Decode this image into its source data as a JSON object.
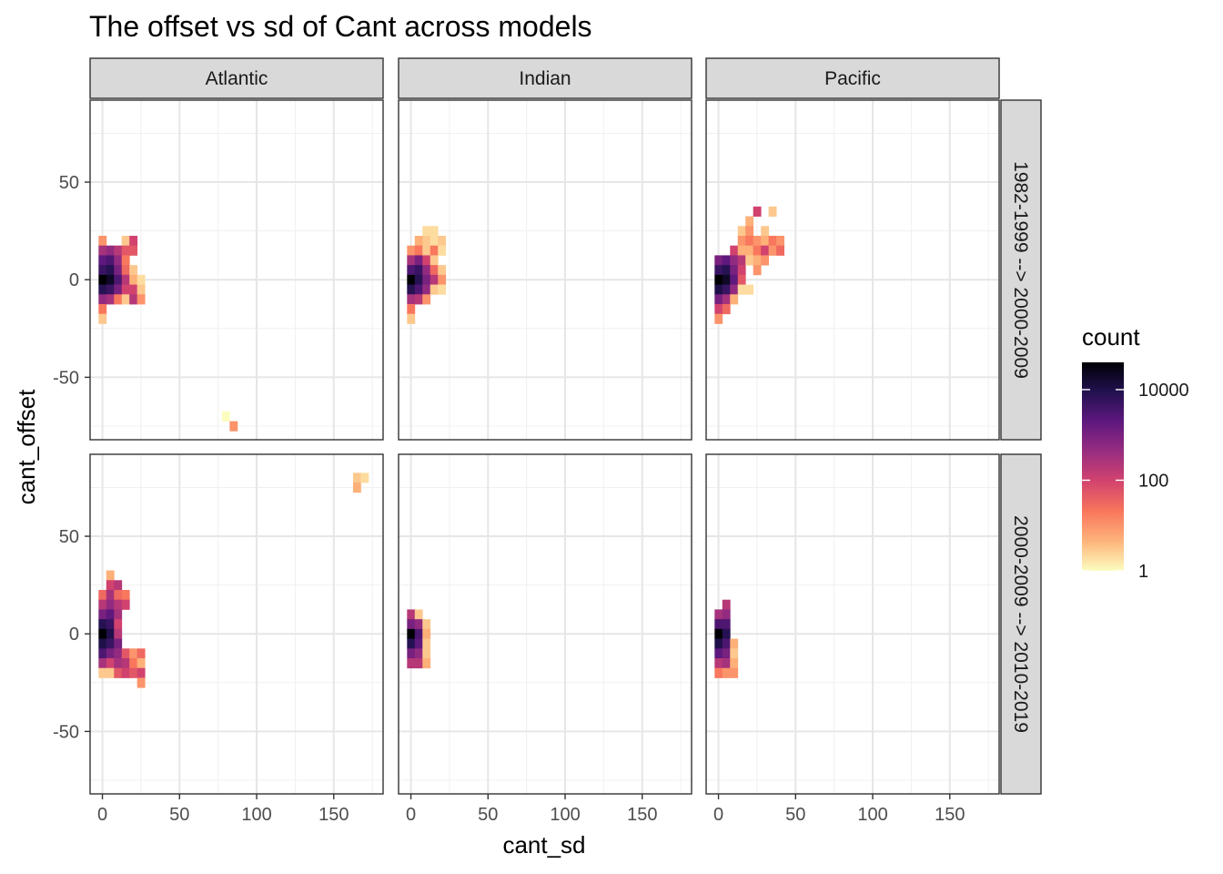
{
  "chart_data": {
    "type": "heatmap",
    "title": "The offset vs sd of Cant across models",
    "xlabel": "cant_sd",
    "ylabel": "cant_offset",
    "xlim": [
      -8,
      182
    ],
    "ylim": [
      -82,
      92
    ],
    "x_ticks": [
      0,
      50,
      100,
      150
    ],
    "y_ticks": [
      -50,
      0,
      50
    ],
    "bin_width_x": 5,
    "bin_width_y": 5,
    "columns": [
      "Atlantic",
      "Indian",
      "Pacific"
    ],
    "rows": [
      "1982-1999 --> 2000-2009",
      "2000-2009 --> 2010-2019"
    ],
    "legend": {
      "title": "count",
      "scale": "log10",
      "range": [
        1,
        40000
      ],
      "breaks": [
        1,
        100,
        10000
      ],
      "break_labels": [
        "1",
        "100",
        "10000"
      ],
      "palette": [
        "#fcfdbf",
        "#feb47b",
        "#f8765c",
        "#d3436e",
        "#982d80",
        "#5f187f",
        "#221150",
        "#000004"
      ]
    },
    "grid": true,
    "panels": [
      {
        "column": "Atlantic",
        "row": "1982-1999 --> 2000-2009",
        "bins": [
          [
            0,
            20,
            10
          ],
          [
            0,
            15,
            300
          ],
          [
            0,
            10,
            2000
          ],
          [
            0,
            5,
            5000
          ],
          [
            0,
            0,
            40000
          ],
          [
            0,
            -5,
            8000
          ],
          [
            0,
            -10,
            500
          ],
          [
            0,
            -15,
            20
          ],
          [
            0,
            -20,
            3
          ],
          [
            5,
            15,
            500
          ],
          [
            5,
            10,
            3000
          ],
          [
            5,
            5,
            8000
          ],
          [
            5,
            0,
            20000
          ],
          [
            5,
            -5,
            5000
          ],
          [
            5,
            -10,
            300
          ],
          [
            10,
            15,
            200
          ],
          [
            10,
            10,
            500
          ],
          [
            10,
            5,
            1000
          ],
          [
            10,
            0,
            3000
          ],
          [
            10,
            -5,
            1000
          ],
          [
            10,
            -10,
            20
          ],
          [
            15,
            20,
            3
          ],
          [
            15,
            15,
            50
          ],
          [
            15,
            10,
            20
          ],
          [
            15,
            5,
            30
          ],
          [
            15,
            0,
            200
          ],
          [
            15,
            -5,
            100
          ],
          [
            15,
            -10,
            3
          ],
          [
            20,
            20,
            100
          ],
          [
            20,
            15,
            50
          ],
          [
            20,
            5,
            3
          ],
          [
            20,
            0,
            5
          ],
          [
            20,
            -5,
            100
          ],
          [
            20,
            -10,
            200
          ],
          [
            25,
            0,
            2
          ],
          [
            25,
            -5,
            3
          ],
          [
            25,
            -10,
            10
          ],
          [
            80,
            -70,
            1
          ],
          [
            85,
            -75,
            10
          ]
        ]
      },
      {
        "column": "Indian",
        "row": "1982-1999 --> 2000-2009",
        "bins": [
          [
            0,
            15,
            10
          ],
          [
            0,
            10,
            300
          ],
          [
            0,
            5,
            3000
          ],
          [
            0,
            0,
            40000
          ],
          [
            0,
            -5,
            8000
          ],
          [
            0,
            -10,
            300
          ],
          [
            0,
            -15,
            20
          ],
          [
            0,
            -20,
            3
          ],
          [
            5,
            20,
            5
          ],
          [
            5,
            15,
            20
          ],
          [
            5,
            10,
            1000
          ],
          [
            5,
            5,
            5000
          ],
          [
            5,
            0,
            8000
          ],
          [
            5,
            -5,
            3000
          ],
          [
            5,
            -10,
            200
          ],
          [
            10,
            25,
            2
          ],
          [
            10,
            20,
            3
          ],
          [
            10,
            15,
            3
          ],
          [
            10,
            10,
            100
          ],
          [
            10,
            5,
            500
          ],
          [
            10,
            0,
            1000
          ],
          [
            10,
            -5,
            500
          ],
          [
            10,
            -10,
            10
          ],
          [
            15,
            25,
            2
          ],
          [
            15,
            20,
            2
          ],
          [
            15,
            15,
            20
          ],
          [
            15,
            10,
            3
          ],
          [
            15,
            5,
            30
          ],
          [
            15,
            0,
            200
          ],
          [
            15,
            -5,
            3
          ],
          [
            20,
            20,
            3
          ],
          [
            20,
            15,
            2
          ],
          [
            20,
            5,
            3
          ],
          [
            20,
            0,
            10
          ],
          [
            20,
            -5,
            2
          ]
        ]
      },
      {
        "column": "Pacific",
        "row": "1982-1999 --> 2000-2009",
        "bins": [
          [
            0,
            10,
            1000
          ],
          [
            0,
            5,
            5000
          ],
          [
            0,
            0,
            40000
          ],
          [
            0,
            -5,
            10000
          ],
          [
            0,
            -10,
            1000
          ],
          [
            0,
            -15,
            100
          ],
          [
            0,
            -20,
            10
          ],
          [
            5,
            10,
            2000
          ],
          [
            5,
            5,
            8000
          ],
          [
            5,
            0,
            20000
          ],
          [
            5,
            -5,
            5000
          ],
          [
            5,
            -10,
            300
          ],
          [
            5,
            -15,
            30
          ],
          [
            10,
            15,
            100
          ],
          [
            10,
            10,
            500
          ],
          [
            10,
            5,
            1000
          ],
          [
            10,
            0,
            2000
          ],
          [
            10,
            -5,
            500
          ],
          [
            10,
            -10,
            5
          ],
          [
            15,
            25,
            3
          ],
          [
            15,
            20,
            10
          ],
          [
            15,
            15,
            5
          ],
          [
            15,
            10,
            200
          ],
          [
            15,
            5,
            100
          ],
          [
            15,
            0,
            50
          ],
          [
            15,
            -5,
            2
          ],
          [
            20,
            30,
            5
          ],
          [
            20,
            25,
            10
          ],
          [
            20,
            20,
            20
          ],
          [
            20,
            15,
            5
          ],
          [
            20,
            10,
            3
          ],
          [
            20,
            -5,
            2
          ],
          [
            25,
            35,
            100
          ],
          [
            25,
            20,
            10
          ],
          [
            25,
            15,
            20
          ],
          [
            25,
            10,
            5
          ],
          [
            25,
            5,
            10
          ],
          [
            30,
            25,
            3
          ],
          [
            30,
            20,
            5
          ],
          [
            30,
            15,
            100
          ],
          [
            30,
            10,
            10
          ],
          [
            35,
            35,
            3
          ],
          [
            35,
            20,
            20
          ],
          [
            35,
            15,
            10
          ],
          [
            40,
            20,
            10
          ],
          [
            40,
            15,
            30
          ]
        ]
      },
      {
        "column": "Atlantic",
        "row": "2000-2009 --> 2010-2019",
        "bins": [
          [
            0,
            20,
            30
          ],
          [
            0,
            15,
            200
          ],
          [
            0,
            10,
            1000
          ],
          [
            0,
            5,
            8000
          ],
          [
            0,
            0,
            40000
          ],
          [
            0,
            -5,
            10000
          ],
          [
            0,
            -10,
            3000
          ],
          [
            0,
            -15,
            300
          ],
          [
            0,
            -20,
            3
          ],
          [
            5,
            30,
            5
          ],
          [
            5,
            25,
            100
          ],
          [
            5,
            20,
            300
          ],
          [
            5,
            15,
            500
          ],
          [
            5,
            10,
            2000
          ],
          [
            5,
            5,
            5000
          ],
          [
            5,
            0,
            10000
          ],
          [
            5,
            -5,
            5000
          ],
          [
            5,
            -10,
            1000
          ],
          [
            5,
            -15,
            100
          ],
          [
            5,
            -20,
            3
          ],
          [
            10,
            25,
            200
          ],
          [
            10,
            20,
            30
          ],
          [
            10,
            15,
            200
          ],
          [
            10,
            10,
            300
          ],
          [
            10,
            5,
            100
          ],
          [
            10,
            0,
            200
          ],
          [
            10,
            -5,
            1000
          ],
          [
            10,
            -10,
            500
          ],
          [
            10,
            -15,
            300
          ],
          [
            10,
            -20,
            50
          ],
          [
            15,
            20,
            20
          ],
          [
            15,
            15,
            100
          ],
          [
            15,
            -10,
            50
          ],
          [
            15,
            -15,
            200
          ],
          [
            15,
            -20,
            100
          ],
          [
            20,
            -10,
            10
          ],
          [
            20,
            -15,
            20
          ],
          [
            20,
            -20,
            50
          ],
          [
            25,
            -10,
            30
          ],
          [
            25,
            -15,
            5
          ],
          [
            25,
            -20,
            100
          ],
          [
            25,
            -25,
            10
          ],
          [
            165,
            80,
            3
          ],
          [
            165,
            75,
            5
          ],
          [
            170,
            80,
            2
          ]
        ]
      },
      {
        "column": "Indian",
        "row": "2000-2009 --> 2010-2019",
        "bins": [
          [
            0,
            10,
            200
          ],
          [
            0,
            5,
            1000
          ],
          [
            0,
            0,
            40000
          ],
          [
            0,
            -5,
            8000
          ],
          [
            0,
            -10,
            1000
          ],
          [
            0,
            -15,
            200
          ],
          [
            5,
            10,
            3
          ],
          [
            5,
            5,
            500
          ],
          [
            5,
            0,
            3000
          ],
          [
            5,
            -5,
            2000
          ],
          [
            5,
            -10,
            500
          ],
          [
            5,
            -15,
            200
          ],
          [
            10,
            5,
            3
          ],
          [
            10,
            0,
            5
          ],
          [
            10,
            -5,
            3
          ],
          [
            10,
            -10,
            3
          ],
          [
            10,
            -15,
            5
          ]
        ]
      },
      {
        "column": "Pacific",
        "row": "2000-2009 --> 2010-2019",
        "bins": [
          [
            0,
            10,
            300
          ],
          [
            0,
            5,
            3000
          ],
          [
            0,
            0,
            40000
          ],
          [
            0,
            -5,
            10000
          ],
          [
            0,
            -10,
            2000
          ],
          [
            0,
            -15,
            200
          ],
          [
            0,
            -20,
            20
          ],
          [
            5,
            15,
            200
          ],
          [
            5,
            10,
            500
          ],
          [
            5,
            5,
            3000
          ],
          [
            5,
            0,
            8000
          ],
          [
            5,
            -5,
            3000
          ],
          [
            5,
            -10,
            1000
          ],
          [
            5,
            -15,
            300
          ],
          [
            5,
            -20,
            10
          ],
          [
            10,
            -5,
            5
          ],
          [
            10,
            -10,
            3
          ],
          [
            10,
            -15,
            5
          ],
          [
            10,
            -20,
            10
          ]
        ]
      }
    ]
  }
}
